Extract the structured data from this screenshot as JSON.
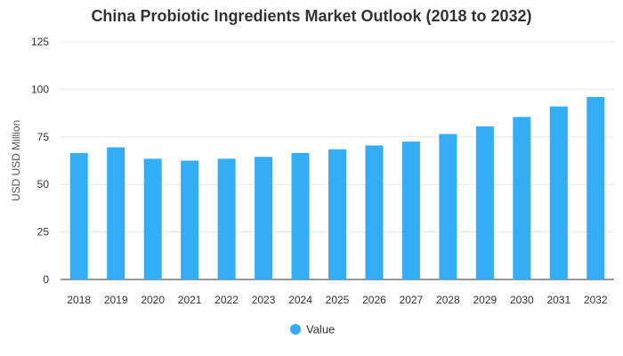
{
  "chart_data": {
    "type": "bar",
    "title": "China Probiotic Ingredients Market Outlook (2018 to 2032)",
    "xlabel": "",
    "ylabel": "USD USD Million",
    "ylim": [
      0,
      125
    ],
    "yticks": [
      0,
      25,
      50,
      75,
      100,
      125
    ],
    "grid": true,
    "legend_position": "bottom",
    "categories": [
      "2018",
      "2019",
      "2020",
      "2021",
      "2022",
      "2023",
      "2024",
      "2025",
      "2026",
      "2027",
      "2028",
      "2029",
      "2030",
      "2031",
      "2032"
    ],
    "series": [
      {
        "name": "Value",
        "color": "#33adf5",
        "values": [
          66.5,
          69.5,
          63.5,
          62.5,
          63.5,
          64.5,
          66.5,
          68.5,
          70.5,
          72.5,
          76.5,
          80.5,
          85.5,
          91,
          96
        ]
      }
    ]
  }
}
